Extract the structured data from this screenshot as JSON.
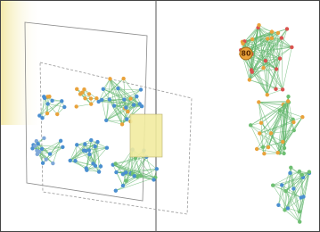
{
  "node_labels": [
    "80"
  ]
}
